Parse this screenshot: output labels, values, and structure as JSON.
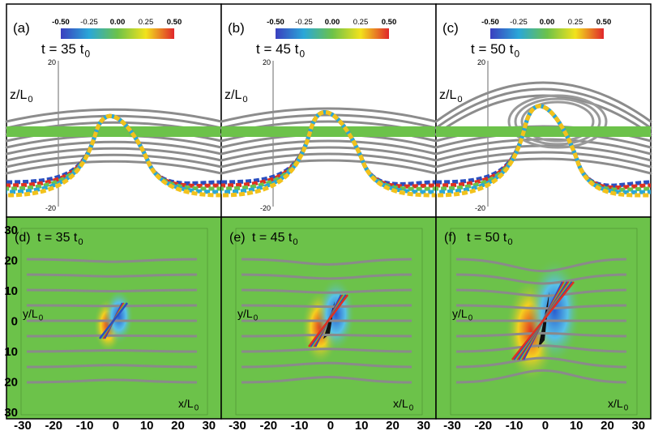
{
  "panels_top": [
    {
      "label": "(a)",
      "time": "t = 35 t",
      "time_sub": "0",
      "z_label": "z/L",
      "z_sub": "0",
      "z_top": "20",
      "z_bottom": "-20"
    },
    {
      "label": "(b)",
      "time": "t = 45 t",
      "time_sub": "0",
      "z_label": "z/L",
      "z_sub": "0",
      "z_top": "20",
      "z_bottom": "-20"
    },
    {
      "label": "(c)",
      "time": "t = 50 t",
      "time_sub": "0",
      "z_label": "z/L",
      "z_sub": "0",
      "z_top": "20",
      "z_bottom": "-20"
    }
  ],
  "colorbar_ticks": [
    "-0.50",
    "-0.25",
    "0.00",
    "0.25",
    "0.50"
  ],
  "panels_bottom": [
    {
      "label": "(d)",
      "time": "t = 35 t",
      "time_sub": "0",
      "y_label": "y/L",
      "y_sub": "0",
      "x_label": "x/L",
      "x_sub": "0"
    },
    {
      "label": "(e)",
      "time": "t = 45 t",
      "time_sub": "0",
      "y_label": "y/L",
      "y_sub": "0",
      "x_label": "x/L",
      "x_sub": "0"
    },
    {
      "label": "(f)",
      "time": "t = 50 t",
      "time_sub": "0",
      "y_label": "y/L",
      "y_sub": "0",
      "x_label": "x/L",
      "x_sub": "0"
    }
  ],
  "y_ticks": [
    "30",
    "20",
    "10",
    "0",
    "10",
    "20",
    "30"
  ],
  "x_ticks": [
    "-30",
    "-20",
    "-10",
    "0",
    "10",
    "20",
    "30"
  ]
}
